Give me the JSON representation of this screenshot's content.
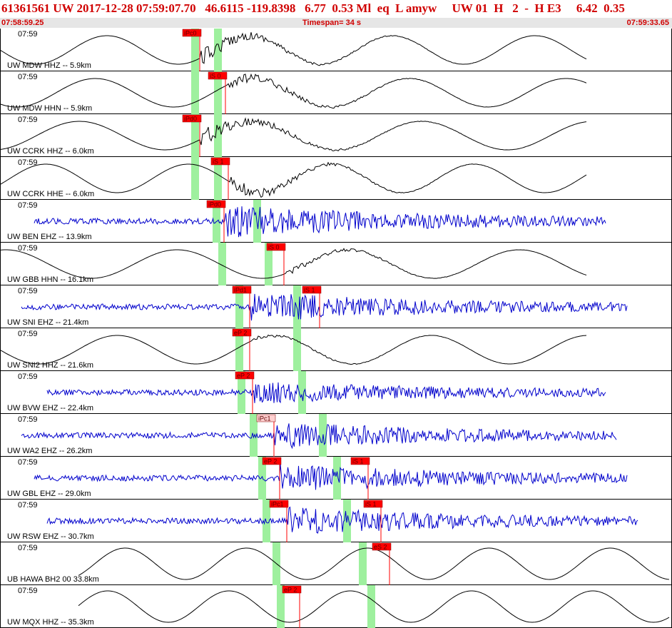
{
  "header": {
    "title": "61361561 UW 2017-12-28 07:59:07.70   46.6115 -119.8398   6.77  0.53 Ml  eq  L amyw     UW 01  H   2  -  H E3     6.42  0.35",
    "start_time": "07:58:59.25",
    "timespan": "Timespan=  34 s",
    "end_time": "07:59:33.65"
  },
  "colors": {
    "pick_marker": "#ff0000",
    "theoretical_window": "#9ef09e",
    "trace_broadband": "#000000",
    "trace_short_period": "#0000cc",
    "header_text": "#d00000"
  },
  "panels": [
    {
      "time": "07:59",
      "label": "UW MDW HHZ -- 5.9km",
      "trace": "smooth",
      "color": "#000000",
      "windows": [
        268,
        300
      ],
      "picks": [
        {
          "label": "iPc0",
          "x": 256
        }
      ],
      "onset": 280,
      "amp": 0.55
    },
    {
      "time": "07:59",
      "label": "UW MDW HHN -- 5.9km",
      "trace": "smooth",
      "color": "#000000",
      "windows": [
        268,
        300
      ],
      "picks": [
        {
          "label": "iS 0",
          "x": 292
        }
      ],
      "onset": 318,
      "amp": 0.45
    },
    {
      "time": "07:59",
      "label": "UW CCRK HHZ -- 6.0km",
      "trace": "smooth",
      "color": "#000000",
      "windows": [
        268,
        300
      ],
      "picks": [
        {
          "label": "iPd0",
          "x": 256
        }
      ],
      "onset": 280,
      "amp": 0.6
    },
    {
      "time": "07:59",
      "label": "UW CCRK HHE -- 6.0km",
      "trace": "smooth",
      "color": "#000000",
      "windows": [
        268,
        300
      ],
      "picks": [
        {
          "label": "iS 1",
          "x": 296
        }
      ],
      "onset": 322,
      "amp": 0.5
    },
    {
      "time": "07:59",
      "label": "UW BEN EHZ -- 13.9km",
      "trace": "noise",
      "color": "#0000cc",
      "windows": [
        298,
        355
      ],
      "picks": [
        {
          "label": "iPd0",
          "x": 290
        }
      ],
      "onset": 316,
      "amp": 0.9
    },
    {
      "time": "07:59",
      "label": "UW GBB HHN -- 16.1km",
      "trace": "smooth",
      "color": "#000000",
      "windows": [
        306,
        371
      ],
      "picks": [
        {
          "label": "iS 0",
          "x": 374
        }
      ],
      "onset": 400,
      "amp": 0.25
    },
    {
      "time": "07:59",
      "label": "UW SNI EHZ -- 21.4km",
      "trace": "noise",
      "color": "#0000cc",
      "windows": [
        330,
        411
      ],
      "picks": [
        {
          "label": "iPd1",
          "x": 326
        },
        {
          "label": "iS 1",
          "x": 424
        }
      ],
      "onset": 352,
      "amp": 0.8
    },
    {
      "time": "07:59",
      "label": "UW SNI2 HHZ -- 21.6km",
      "trace": "smooth",
      "color": "#000000",
      "windows": [
        330,
        411
      ],
      "picks": [
        {
          "label": "eP 2",
          "x": 326
        }
      ],
      "onset": 352,
      "amp": 0.15
    },
    {
      "time": "07:59",
      "label": "UW BVW EHZ -- 22.4km",
      "trace": "noise",
      "color": "#0000cc",
      "windows": [
        333,
        418
      ],
      "picks": [
        {
          "label": "eP 2",
          "x": 330
        }
      ],
      "onset": 356,
      "amp": 0.55
    },
    {
      "time": "07:59",
      "label": "UW WA2 EHZ -- 26.2km",
      "trace": "noise",
      "color": "#0000cc",
      "windows": [
        350,
        447
      ],
      "picks": [
        {
          "label": "iPc1",
          "x": 360
        }
      ],
      "onset": 385,
      "amp": 0.7
    },
    {
      "time": "07:59",
      "label": "UW GBL EHZ -- 29.0km",
      "trace": "noise",
      "color": "#0000cc",
      "windows": [
        362,
        467
      ],
      "picks": [
        {
          "label": "eP 2",
          "x": 368
        },
        {
          "label": "iS 1",
          "x": 492
        }
      ],
      "onset": 392,
      "amp": 0.75
    },
    {
      "time": "07:59",
      "label": "UW RSW EHZ -- 30.7km",
      "trace": "noise",
      "color": "#0000cc",
      "windows": [
        368,
        481
      ],
      "picks": [
        {
          "label": "iPc1",
          "x": 378
        },
        {
          "label": "iS 1",
          "x": 510
        }
      ],
      "onset": 402,
      "amp": 0.75
    },
    {
      "time": "07:59",
      "label": "UB HAWA BH2 00 33.8km",
      "trace": "sine",
      "color": "#000000",
      "windows": [
        382,
        503
      ],
      "picks": [
        {
          "label": "eS 2",
          "x": 522
        }
      ],
      "onset": 548,
      "amp": 0
    },
    {
      "time": "07:59",
      "label": "UW MQX HHZ -- 35.3km",
      "trace": "sine",
      "color": "#000000",
      "windows": [
        388,
        515
      ],
      "picks": [
        {
          "label": "eP 2",
          "x": 396
        }
      ],
      "onset": 421,
      "amp": 0
    }
  ]
}
